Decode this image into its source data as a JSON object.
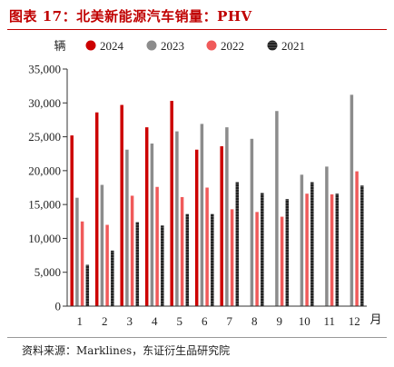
{
  "figure": {
    "title": "图表 17：北美新能源汽车销量：PHV",
    "source": "资料来源：Marklines，东证衍生品研究院"
  },
  "chart_data": {
    "type": "bar",
    "title": "图表 17：北美新能源汽车销量：PHV",
    "ylabel": "辆",
    "xlabel": "月",
    "ylim": [
      0,
      35000
    ],
    "yticks": [
      0,
      5000,
      10000,
      15000,
      20000,
      25000,
      30000,
      35000
    ],
    "ytick_labels": [
      "0",
      "5,000",
      "10,000",
      "15,000",
      "20,000",
      "25,000",
      "30,000",
      "35,000"
    ],
    "categories": [
      "1",
      "2",
      "3",
      "4",
      "5",
      "6",
      "7",
      "8",
      "9",
      "10",
      "11",
      "12"
    ],
    "grid": false,
    "legend": "top",
    "series": [
      {
        "name": "2024",
        "color": "#cc0000",
        "pattern": "solid",
        "values": [
          25200,
          28600,
          29700,
          26400,
          30300,
          23100,
          23600,
          null,
          null,
          null,
          null,
          null
        ]
      },
      {
        "name": "2023",
        "color": "#8c8c8c",
        "pattern": "solid",
        "values": [
          16000,
          17900,
          23100,
          24000,
          25800,
          26900,
          26400,
          24700,
          28800,
          19400,
          20600,
          31200
        ]
      },
      {
        "name": "2022",
        "color": "#f05a5a",
        "pattern": "solid",
        "values": [
          12500,
          12000,
          16300,
          17600,
          16100,
          17500,
          14300,
          13900,
          13200,
          16600,
          16500,
          19900
        ]
      },
      {
        "name": "2021",
        "color": "#1a1a1a",
        "pattern": "hatched",
        "values": [
          6100,
          8200,
          12400,
          11900,
          13600,
          13600,
          18300,
          16700,
          15800,
          18300,
          16600,
          17800
        ]
      }
    ]
  }
}
